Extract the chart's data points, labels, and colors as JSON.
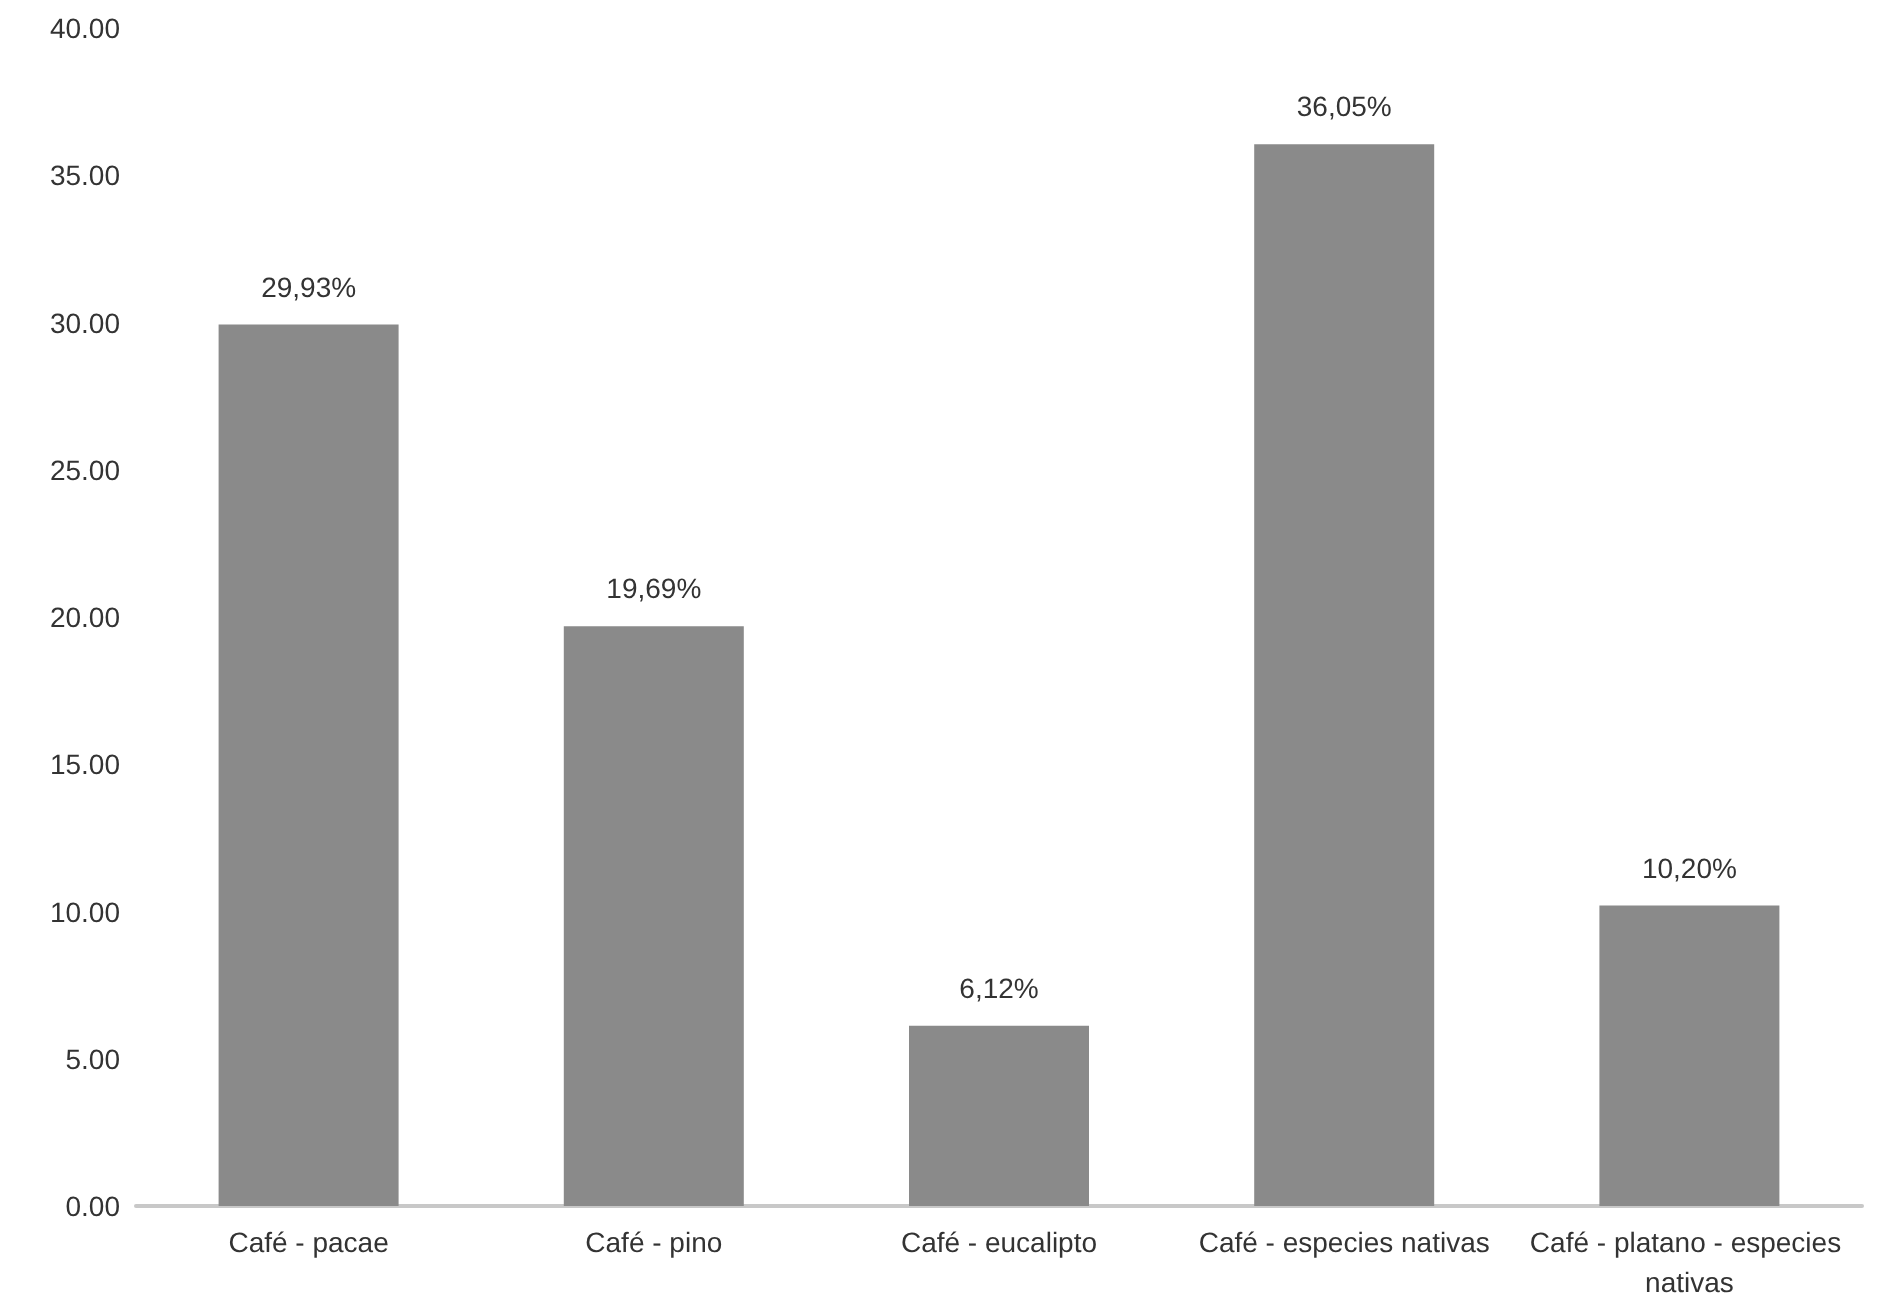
{
  "chart_data": {
    "type": "bar",
    "categories": [
      "Café - pacae",
      "Café - pino",
      "Café - eucalipto",
      "Café - especies nativas",
      "Café - platano - especies nativas"
    ],
    "values": [
      29.93,
      19.69,
      6.12,
      36.05,
      10.2
    ],
    "value_labels": [
      "29,93%",
      "19,69%",
      "6,12%",
      "36,05%",
      "10,20%"
    ],
    "color": "#8a8a8a",
    "ylim": [
      0,
      40
    ],
    "yticks": [
      {
        "value": 0,
        "label": "0.00"
      },
      {
        "value": 5,
        "label": "5.00"
      },
      {
        "value": 10,
        "label": "10.00"
      },
      {
        "value": 15,
        "label": "15.00"
      },
      {
        "value": 20,
        "label": "20.00"
      },
      {
        "value": 25,
        "label": "25.00"
      },
      {
        "value": 30,
        "label": "30.00"
      },
      {
        "value": 35,
        "label": "35.00"
      },
      {
        "value": 40,
        "label": "40.00"
      }
    ],
    "grid": false
  }
}
